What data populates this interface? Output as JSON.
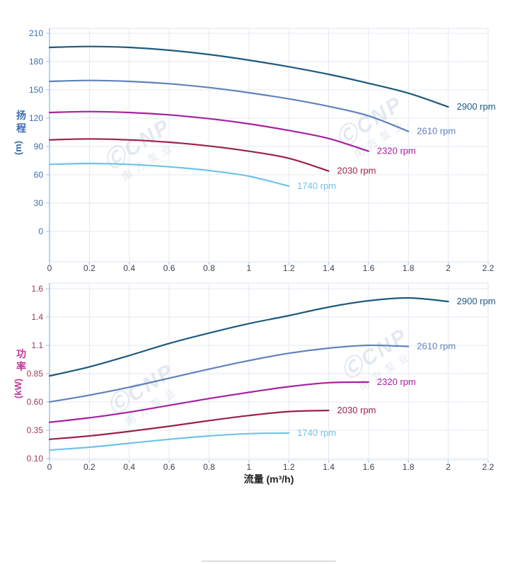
{
  "page": {
    "background": "#ffffff"
  },
  "xlabel": "流量 (m³/h)",
  "watermark": {
    "logo": "ⒸCNP",
    "text": "南方泵业",
    "color": "#c9d4e3"
  },
  "chart_data": [
    {
      "name": "head-chart",
      "type": "line",
      "title": "",
      "ylabel": "扬程 (m)",
      "ylabel_chars": [
        "扬",
        "程"
      ],
      "ylabel_unit": "(m)",
      "xlabel": "流量 (m³/h)",
      "xlim": [
        0,
        2.2
      ],
      "ylim": [
        0,
        210
      ],
      "grid": true,
      "legend_position": "end-of-line",
      "tick_color": "#3a6db4",
      "title_color": "#3a6db4",
      "xticks": [
        {
          "value": 0,
          "label": "0"
        },
        {
          "value": 0.2,
          "label": "0.2"
        },
        {
          "value": 0.4,
          "label": "0.4"
        },
        {
          "value": 0.6,
          "label": "0.6"
        },
        {
          "value": 0.8,
          "label": "0.8"
        },
        {
          "value": 1,
          "label": "1"
        },
        {
          "value": 1.2,
          "label": "1.2"
        },
        {
          "value": 1.4,
          "label": "1.4"
        },
        {
          "value": 1.6,
          "label": "1.6"
        },
        {
          "value": 1.8,
          "label": "1.8"
        },
        {
          "value": 2,
          "label": "2"
        },
        {
          "value": 2.2,
          "label": "2.2"
        }
      ],
      "yticks": [
        {
          "value": 210,
          "label": "210"
        },
        {
          "value": 180,
          "label": "180"
        },
        {
          "value": 150,
          "label": "150"
        },
        {
          "value": 120,
          "label": "120"
        },
        {
          "value": 90,
          "label": "90"
        },
        {
          "value": 60,
          "label": "60"
        },
        {
          "value": 30,
          "label": "30"
        },
        {
          "value": 0,
          "label": "0"
        }
      ],
      "series": [
        {
          "name": "2900 rpm",
          "color": "#1e5a7d",
          "x": [
            0,
            0.2,
            0.4,
            0.6,
            0.8,
            1,
            1.2,
            1.4,
            1.6,
            1.8,
            2
          ],
          "y": [
            195,
            196,
            195,
            192,
            187.5,
            181.5,
            174.5,
            166.5,
            157,
            146.5,
            132
          ]
        },
        {
          "name": "2610 rpm",
          "color": "#5f82be",
          "x": [
            0,
            0.2,
            0.4,
            0.6,
            0.8,
            1,
            1.2,
            1.4,
            1.6,
            1.8
          ],
          "y": [
            159,
            160,
            159,
            156.5,
            152.5,
            147,
            140.5,
            132.5,
            122.5,
            106
          ]
        },
        {
          "name": "2320 rpm",
          "color": "#a621a0",
          "x": [
            0,
            0.2,
            0.4,
            0.6,
            0.8,
            1,
            1.2,
            1.4,
            1.6
          ],
          "y": [
            126,
            127,
            126,
            123.5,
            119.5,
            114,
            107,
            98.5,
            85
          ]
        },
        {
          "name": "2030 rpm",
          "color": "#9b2249",
          "x": [
            0,
            0.2,
            0.4,
            0.6,
            0.8,
            1,
            1.2,
            1.4
          ],
          "y": [
            97,
            98,
            97,
            94.5,
            90.5,
            85,
            77.5,
            64
          ]
        },
        {
          "name": "1740 rpm",
          "color": "#6fc3e8",
          "x": [
            0,
            0.2,
            0.4,
            0.6,
            0.8,
            1,
            1.2
          ],
          "y": [
            71,
            72,
            71,
            68.5,
            64.5,
            58.5,
            48
          ]
        }
      ]
    },
    {
      "name": "power-chart",
      "type": "line",
      "title": "",
      "ylabel": "功率 (kW)",
      "ylabel_chars": [
        "功",
        "率"
      ],
      "ylabel_unit": "(kW)",
      "xlabel": "流量 (m³/h)",
      "xlim": [
        0,
        2.2
      ],
      "ylim": [
        0.1,
        1.6
      ],
      "grid": true,
      "legend_position": "end-of-line",
      "tick_color": "#a2395b",
      "title_color": "#c2399b",
      "xticks": [
        {
          "value": 0,
          "label": "0"
        },
        {
          "value": 0.2,
          "label": "0.2"
        },
        {
          "value": 0.4,
          "label": "0.4"
        },
        {
          "value": 0.6,
          "label": "0.6"
        },
        {
          "value": 0.8,
          "label": "0.8"
        },
        {
          "value": 1,
          "label": "1"
        },
        {
          "value": 1.2,
          "label": "1.2"
        },
        {
          "value": 1.4,
          "label": "1.4"
        },
        {
          "value": 1.6,
          "label": "1.6"
        },
        {
          "value": 1.8,
          "label": "1.8"
        },
        {
          "value": 2,
          "label": "2"
        },
        {
          "value": 2.2,
          "label": "2.2"
        }
      ],
      "yticks": [
        {
          "value": 1.6,
          "label": "1.6"
        },
        {
          "value": 1.4,
          "label": "1.4"
        },
        {
          "value": 1.1,
          "label": "1.1"
        },
        {
          "value": 0.85,
          "label": "0.85"
        },
        {
          "value": 0.6,
          "label": "0.60"
        },
        {
          "value": 0.35,
          "label": "0.35"
        },
        {
          "value": 0.1,
          "label": "0.10"
        }
      ],
      "series": [
        {
          "name": "2900 rpm",
          "color": "#1e5a7d",
          "x": [
            0,
            0.2,
            0.4,
            0.6,
            0.8,
            1,
            1.2,
            1.4,
            1.6,
            1.8,
            2
          ],
          "y": [
            0.83,
            0.91,
            1.01,
            1.12,
            1.23,
            1.33,
            1.41,
            1.47,
            1.515,
            1.535,
            1.51
          ]
        },
        {
          "name": "2610 rpm",
          "color": "#5f82be",
          "x": [
            0,
            0.2,
            0.4,
            0.6,
            0.8,
            1,
            1.2,
            1.4,
            1.6,
            1.8
          ],
          "y": [
            0.6,
            0.66,
            0.73,
            0.81,
            0.89,
            0.965,
            1.03,
            1.075,
            1.1,
            1.09
          ]
        },
        {
          "name": "2320 rpm",
          "color": "#a621a0",
          "x": [
            0,
            0.2,
            0.4,
            0.6,
            0.8,
            1,
            1.2,
            1.4,
            1.6
          ],
          "y": [
            0.42,
            0.46,
            0.51,
            0.57,
            0.63,
            0.685,
            0.735,
            0.77,
            0.775
          ]
        },
        {
          "name": "2030 rpm",
          "color": "#9b2249",
          "x": [
            0,
            0.2,
            0.4,
            0.6,
            0.8,
            1,
            1.2,
            1.4
          ],
          "y": [
            0.27,
            0.3,
            0.34,
            0.385,
            0.435,
            0.48,
            0.515,
            0.525
          ]
        },
        {
          "name": "1740 rpm",
          "color": "#6fc3e8",
          "x": [
            0,
            0.2,
            0.4,
            0.6,
            0.8,
            1,
            1.2
          ],
          "y": [
            0.175,
            0.2,
            0.235,
            0.27,
            0.3,
            0.32,
            0.325
          ]
        }
      ]
    }
  ]
}
